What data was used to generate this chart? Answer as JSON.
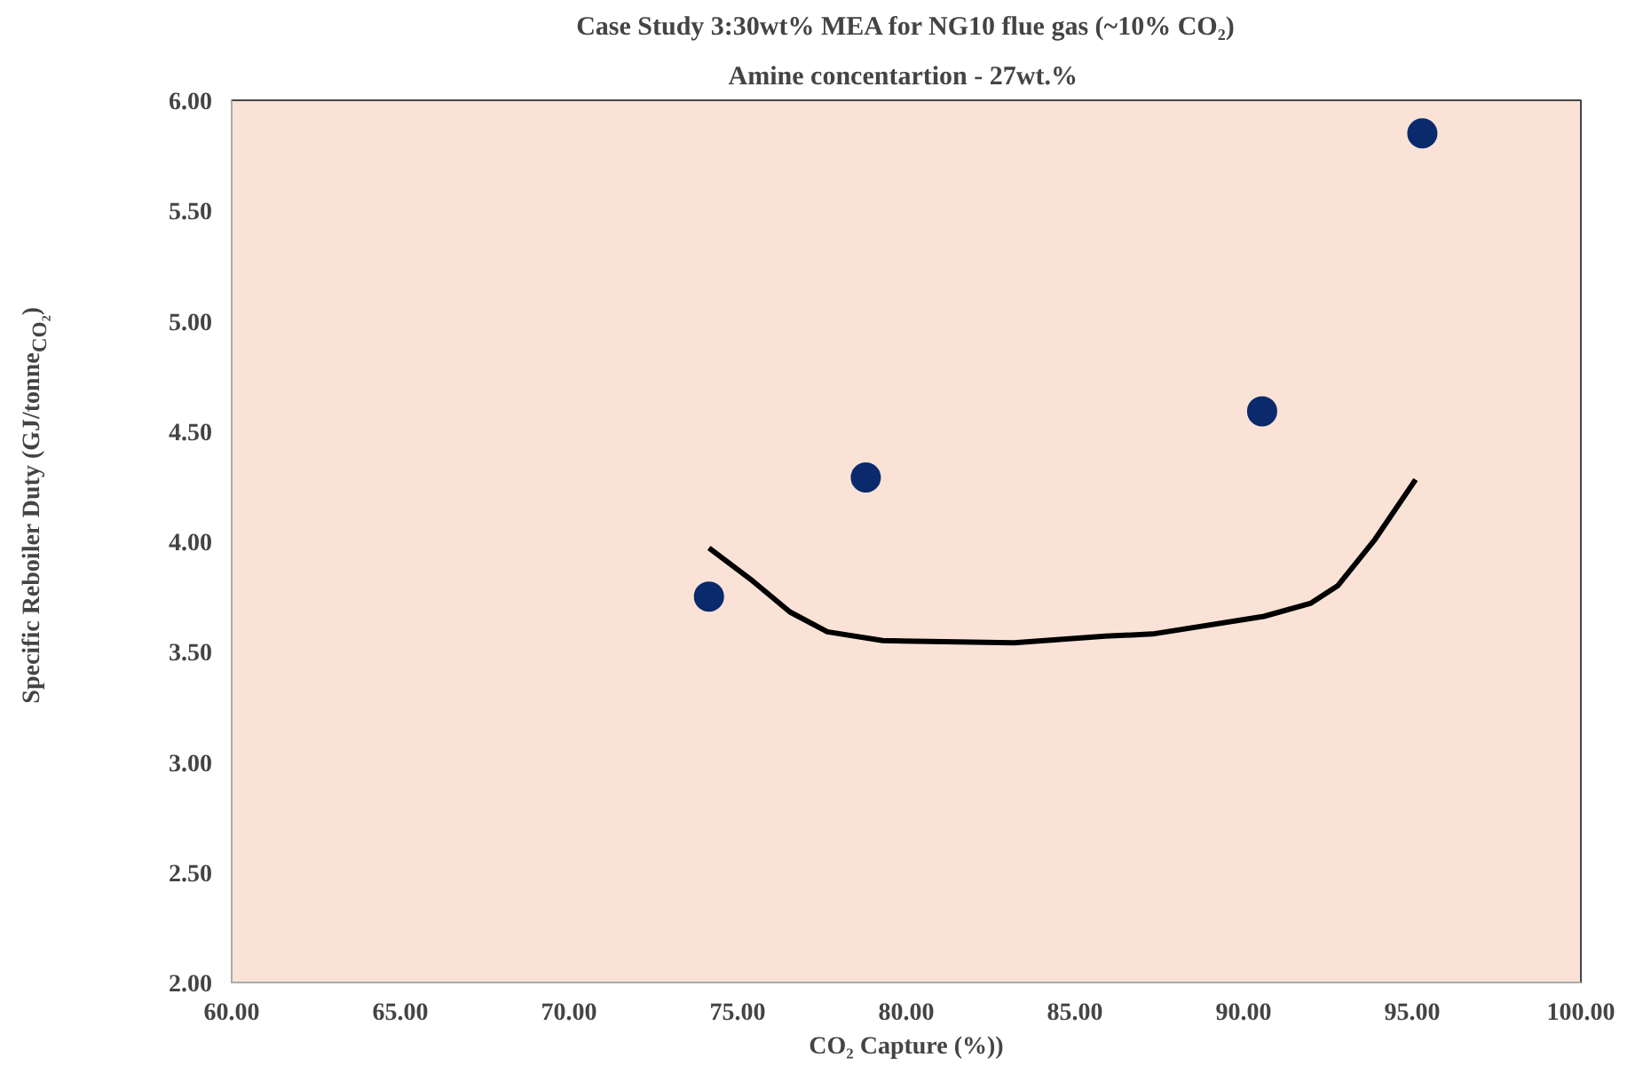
{
  "chart_data": {
    "type": "scatter",
    "title": "Case Study 3:30wt% MEA for NG10 flue gas (~10% CO₂)",
    "subtitle": "Amine concentartion  - 27wt.%",
    "xlabel": "CO₂ Capture (%))",
    "ylabel": "Specific Reboiler Duty (GJ/tonne$_{CO₂}$)",
    "xlim": [
      60,
      100
    ],
    "ylim": [
      2,
      6
    ],
    "xticks": [
      {
        "value": 60,
        "label": "60.00"
      },
      {
        "value": 65,
        "label": "65.00"
      },
      {
        "value": 70,
        "label": "70.00"
      },
      {
        "value": 75,
        "label": "75.00"
      },
      {
        "value": 80,
        "label": "80.00"
      },
      {
        "value": 85,
        "label": "85.00"
      },
      {
        "value": 90,
        "label": "90.00"
      },
      {
        "value": 95,
        "label": "95.00"
      },
      {
        "value": 100,
        "label": "100.00"
      }
    ],
    "yticks": [
      {
        "value": 2,
        "label": "2.00"
      },
      {
        "value": 2.5,
        "label": "2.50"
      },
      {
        "value": 3,
        "label": "3.00"
      },
      {
        "value": 3.5,
        "label": "3.50"
      },
      {
        "value": 4,
        "label": "4.00"
      },
      {
        "value": 4.5,
        "label": "4.50"
      },
      {
        "value": 5,
        "label": "5.00"
      },
      {
        "value": 5.5,
        "label": "5.50"
      },
      {
        "value": 6,
        "label": "6.00"
      }
    ],
    "grid": false,
    "marker": "circle",
    "series": [
      {
        "color": "#0b2a6b",
        "x": [
          74.15,
          78.8,
          90.55,
          95.3
        ],
        "values": [
          3.75,
          4.29,
          4.59,
          5.85
        ]
      },
      {
        "type": "line",
        "color": "#000000",
        "line_style": "solid",
        "marker": "none",
        "x": [
          74.15,
          75.45,
          76.55,
          77.66,
          79.3,
          83.2,
          85.9,
          87.3,
          90.6,
          92.0,
          92.8,
          93.9,
          95.1
        ],
        "values": [
          3.97,
          3.82,
          3.68,
          3.59,
          3.55,
          3.54,
          3.57,
          3.58,
          3.66,
          3.72,
          3.8,
          4.01,
          4.28
        ]
      }
    ]
  }
}
